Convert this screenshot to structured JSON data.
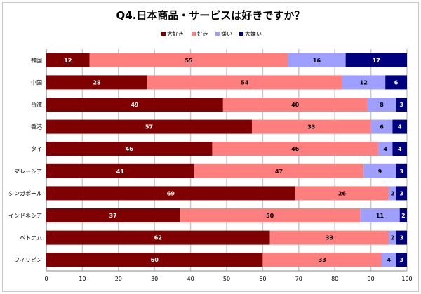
{
  "chart_data": {
    "type": "bar",
    "stacked": true,
    "orientation": "horizontal",
    "title": "Q4.日本商品・サービスは好きですか？",
    "categories": [
      "韓国",
      "中国",
      "台湾",
      "香港",
      "タイ",
      "マレーシア",
      "シンガポール",
      "インドネシア",
      "ベトナム",
      "フィリピン"
    ],
    "series": [
      {
        "name": "大好き",
        "color": "#7f0000",
        "label_color": "#ffffff",
        "values": [
          12,
          28,
          49,
          57,
          46,
          41,
          69,
          37,
          62,
          60
        ]
      },
      {
        "name": "好き",
        "color": "#ff7f7f",
        "label_color": "#000000",
        "values": [
          55,
          54,
          40,
          33,
          46,
          47,
          26,
          50,
          33,
          33
        ]
      },
      {
        "name": "嫌い",
        "color": "#9f9fff",
        "label_color": "#000000",
        "values": [
          16,
          12,
          8,
          6,
          4,
          9,
          2,
          11,
          2,
          4
        ]
      },
      {
        "name": "大嫌い",
        "color": "#00007f",
        "label_color": "#ffffff",
        "values": [
          17,
          6,
          3,
          4,
          4,
          3,
          3,
          2,
          3,
          3
        ]
      }
    ],
    "xlim": [
      0,
      100
    ],
    "xticks": [
      0,
      10,
      20,
      30,
      40,
      50,
      60,
      70,
      80,
      90,
      100
    ],
    "grid": true,
    "legend_position": "top"
  }
}
